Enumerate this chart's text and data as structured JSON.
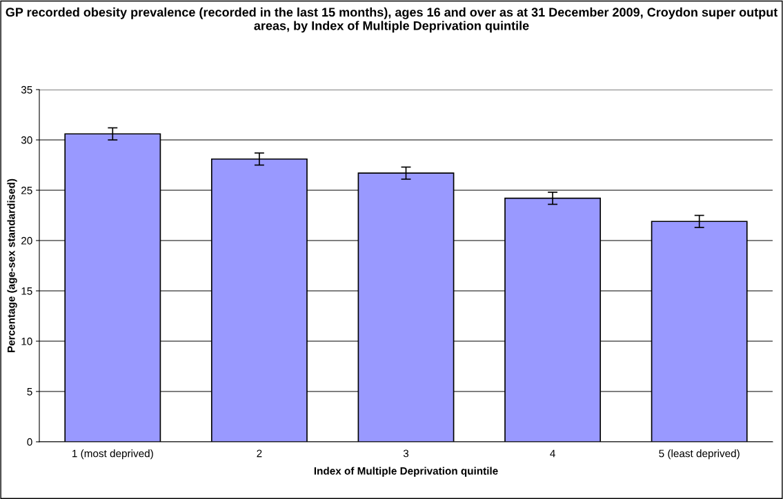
{
  "chart_data": {
    "type": "bar",
    "title": "GP recorded obesity prevalence (recorded in the last 15 months), ages 16 and over as at 31 December 2009, Croydon super output areas, by Index of Multiple Deprivation quintile",
    "xlabel": "Index of Multiple Deprivation quintile",
    "ylabel": "Percentage (age-sex standardised)",
    "categories": [
      "1 (most deprived)",
      "2",
      "3",
      "4",
      "5 (least deprived)"
    ],
    "values": [
      30.6,
      28.1,
      26.7,
      24.2,
      21.9
    ],
    "errors": [
      0.6,
      0.6,
      0.6,
      0.6,
      0.6
    ],
    "color": "#9999ff",
    "ylim": [
      0,
      35
    ],
    "yticks": [
      0,
      5,
      10,
      15,
      20,
      25,
      30,
      35
    ],
    "grid": "y"
  }
}
